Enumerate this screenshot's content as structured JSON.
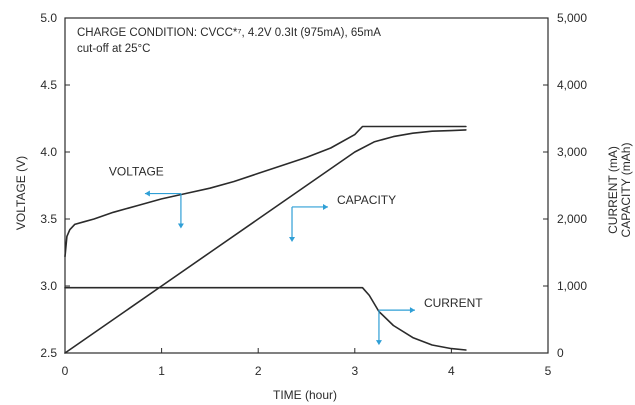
{
  "chart_data": {
    "type": "line",
    "condition_text": {
      "line1": "CHARGE CONDITION: CVCC*⁷, 4.2V 0.3It (975mA), 65mA",
      "line2": "cut-off at 25°C"
    },
    "xlabel": "TIME (hour)",
    "ylabel_left": "VOLTAGE (V)",
    "ylabel_right_1": "CURRENT (mA)",
    "ylabel_right_2": "CAPACITY (mAh)",
    "xlim": [
      0,
      5
    ],
    "ylim_left": [
      2.5,
      5.0
    ],
    "ylim_right": [
      0,
      5000
    ],
    "x_ticks": [
      "0",
      "1",
      "2",
      "3",
      "4",
      "5"
    ],
    "y_left_ticks": [
      "2.5",
      "3.0",
      "3.5",
      "4.0",
      "4.5",
      "5.0"
    ],
    "y_right_ticks": [
      "0",
      "1,000",
      "2,000",
      "3,000",
      "4,000",
      "5,000"
    ],
    "series": [
      {
        "name": "VOLTAGE",
        "axis": "left",
        "x": [
          0,
          0.02,
          0.05,
          0.1,
          0.2,
          0.3,
          0.5,
          0.75,
          1.0,
          1.25,
          1.5,
          1.75,
          2.0,
          2.25,
          2.5,
          2.75,
          3.0,
          3.08,
          3.2,
          3.5,
          4.0,
          4.15
        ],
        "y": [
          3.22,
          3.37,
          3.42,
          3.46,
          3.48,
          3.5,
          3.55,
          3.6,
          3.65,
          3.69,
          3.73,
          3.78,
          3.84,
          3.9,
          3.96,
          4.03,
          4.13,
          4.19,
          4.19,
          4.19,
          4.19,
          4.19
        ]
      },
      {
        "name": "CAPACITY",
        "axis": "right",
        "x": [
          0,
          0.5,
          1.0,
          1.5,
          2.0,
          2.5,
          3.0,
          3.2,
          3.4,
          3.6,
          3.8,
          4.0,
          4.15
        ],
        "y": [
          0,
          500,
          1000,
          1500,
          2000,
          2500,
          3000,
          3150,
          3230,
          3280,
          3310,
          3320,
          3330
        ]
      },
      {
        "name": "CURRENT",
        "axis": "right",
        "x": [
          0,
          0.5,
          1.0,
          1.5,
          2.0,
          2.5,
          3.0,
          3.08,
          3.15,
          3.25,
          3.4,
          3.6,
          3.8,
          4.0,
          4.15
        ],
        "y": [
          975,
          975,
          975,
          975,
          975,
          975,
          975,
          975,
          860,
          620,
          410,
          230,
          120,
          65,
          45
        ]
      }
    ],
    "annotations": [
      {
        "label": "VOLTAGE",
        "series": "VOLTAGE",
        "pt": [
          1.2,
          3.69
        ],
        "xdir": -1,
        "ydir": "down"
      },
      {
        "label": "CAPACITY",
        "series": "CAPACITY",
        "pt": [
          2.35,
          2180
        ],
        "xdir": 1,
        "ydir": "down"
      },
      {
        "label": "CURRENT",
        "series": "CURRENT",
        "pt": [
          3.25,
          640
        ],
        "xdir": 1,
        "ydir": "down"
      }
    ],
    "colors": {
      "line": "#2b2b2b",
      "arrow": "#2f9fd6",
      "frame": "#2b2b2b"
    },
    "grid": false
  }
}
